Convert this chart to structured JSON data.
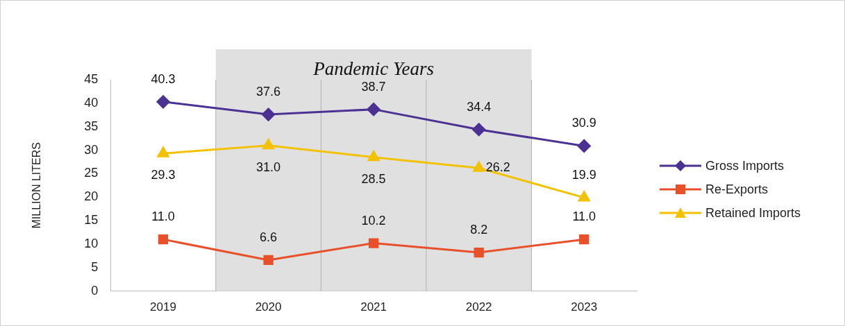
{
  "chart_data": {
    "type": "line",
    "ylabel": "MILLION LITERS",
    "categories": [
      "2019",
      "2020",
      "2021",
      "2022",
      "2023"
    ],
    "series": [
      {
        "name": "Gross Imports",
        "color": "#4b3191",
        "marker": "diamond",
        "values": [
          40.3,
          37.6,
          38.7,
          34.4,
          30.9
        ],
        "value_labels": [
          "40.3",
          "37.6",
          "38.7",
          "34.4",
          "30.9"
        ]
      },
      {
        "name": "Re-Exports",
        "color": "#e8502a",
        "marker": "square",
        "values": [
          11.0,
          6.6,
          10.2,
          8.2,
          11.0
        ],
        "value_labels": [
          "11.0",
          "6.6",
          "10.2",
          "8.2",
          "11.0"
        ]
      },
      {
        "name": "Retained Imports",
        "color": "#f2c200",
        "marker": "triangle",
        "values": [
          29.3,
          31.0,
          28.5,
          26.2,
          19.9
        ],
        "value_labels": [
          "29.3",
          "31.0",
          "28.5",
          "26.2",
          "19.9"
        ]
      }
    ],
    "ylim": [
      0,
      45
    ],
    "yticks": [
      0,
      5,
      10,
      15,
      20,
      25,
      30,
      35,
      40,
      45
    ],
    "grid": false,
    "legend": "right",
    "bands": [
      {
        "axis": "x",
        "from": "2020",
        "to": "2022",
        "label": "Pandemic Years",
        "color": "#e0e0e0"
      }
    ]
  }
}
